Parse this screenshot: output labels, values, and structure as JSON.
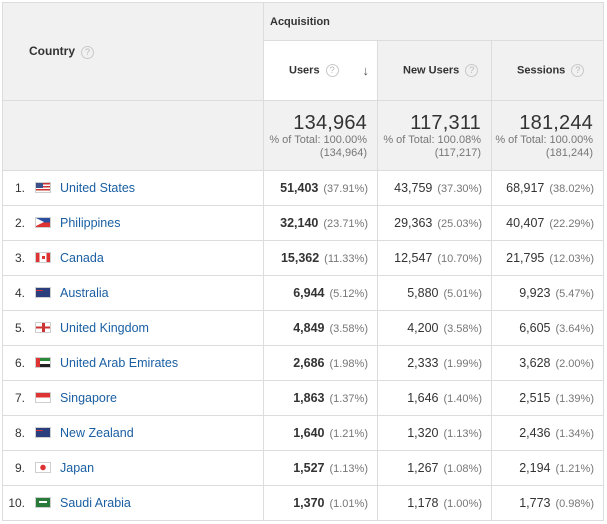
{
  "header": {
    "country_label": "Country",
    "group_label": "Acquisition",
    "metrics": [
      {
        "label": "Users"
      },
      {
        "label": "New Users"
      },
      {
        "label": "Sessions"
      }
    ],
    "help_glyph": "?",
    "sort_glyph": "↓"
  },
  "totals": [
    {
      "value": "134,964",
      "pct": "% of Total: 100.00%",
      "base": "(134,964)"
    },
    {
      "value": "117,311",
      "pct": "% of Total: 100.08%",
      "base": "(117,217)"
    },
    {
      "value": "181,244",
      "pct": "% of Total: 100.00%",
      "base": "(181,244)"
    }
  ],
  "rows": [
    {
      "idx": "1.",
      "flag": "us-flag-icon",
      "country": "United States",
      "users": "51,403",
      "users_pct": "(37.91%)",
      "new_users": "43,759",
      "new_users_pct": "(37.30%)",
      "sessions": "68,917",
      "sessions_pct": "(38.02%)"
    },
    {
      "idx": "2.",
      "flag": "ph-flag-icon",
      "country": "Philippines",
      "users": "32,140",
      "users_pct": "(23.71%)",
      "new_users": "29,363",
      "new_users_pct": "(25.03%)",
      "sessions": "40,407",
      "sessions_pct": "(22.29%)"
    },
    {
      "idx": "3.",
      "flag": "ca-flag-icon",
      "country": "Canada",
      "users": "15,362",
      "users_pct": "(11.33%)",
      "new_users": "12,547",
      "new_users_pct": "(10.70%)",
      "sessions": "21,795",
      "sessions_pct": "(12.03%)"
    },
    {
      "idx": "4.",
      "flag": "au-flag-icon",
      "country": "Australia",
      "users": "6,944",
      "users_pct": "(5.12%)",
      "new_users": "5,880",
      "new_users_pct": "(5.01%)",
      "sessions": "9,923",
      "sessions_pct": "(5.47%)"
    },
    {
      "idx": "5.",
      "flag": "gb-flag-icon",
      "country": "United Kingdom",
      "users": "4,849",
      "users_pct": "(3.58%)",
      "new_users": "4,200",
      "new_users_pct": "(3.58%)",
      "sessions": "6,605",
      "sessions_pct": "(3.64%)"
    },
    {
      "idx": "6.",
      "flag": "ae-flag-icon",
      "country": "United Arab Emirates",
      "users": "2,686",
      "users_pct": "(1.98%)",
      "new_users": "2,333",
      "new_users_pct": "(1.99%)",
      "sessions": "3,628",
      "sessions_pct": "(2.00%)"
    },
    {
      "idx": "7.",
      "flag": "sg-flag-icon",
      "country": "Singapore",
      "users": "1,863",
      "users_pct": "(1.37%)",
      "new_users": "1,646",
      "new_users_pct": "(1.40%)",
      "sessions": "2,515",
      "sessions_pct": "(1.39%)"
    },
    {
      "idx": "8.",
      "flag": "nz-flag-icon",
      "country": "New Zealand",
      "users": "1,640",
      "users_pct": "(1.21%)",
      "new_users": "1,320",
      "new_users_pct": "(1.13%)",
      "sessions": "2,436",
      "sessions_pct": "(1.34%)"
    },
    {
      "idx": "9.",
      "flag": "jp-flag-icon",
      "country": "Japan",
      "users": "1,527",
      "users_pct": "(1.13%)",
      "new_users": "1,267",
      "new_users_pct": "(1.08%)",
      "sessions": "2,194",
      "sessions_pct": "(1.21%)"
    },
    {
      "idx": "10.",
      "flag": "sa-flag-icon",
      "country": "Saudi Arabia",
      "users": "1,370",
      "users_pct": "(1.01%)",
      "new_users": "1,178",
      "new_users_pct": "(1.00%)",
      "sessions": "1,773",
      "sessions_pct": "(0.98%)"
    }
  ]
}
